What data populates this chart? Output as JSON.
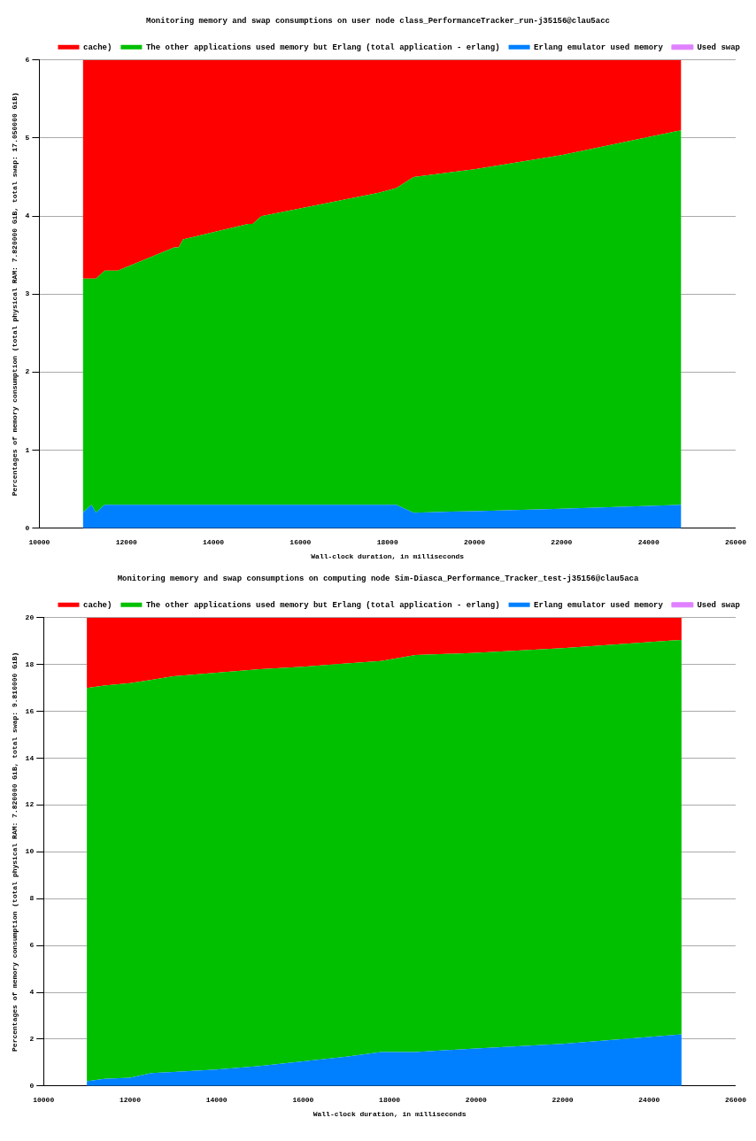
{
  "chart_data": [
    {
      "type": "area",
      "title": "Monitoring memory and swap consumptions on user node class_PerformanceTracker_run-j35156@clau5acc",
      "xlabel": "Wall-clock duration, in milliseconds",
      "ylabel": "Percentages of memory consumption (total physical RAM: 7.820000 GiB, total swap: 17.050000 GiB)",
      "stacked": true,
      "grid": "y",
      "legend": "top right",
      "marker": "none",
      "x": [
        11000,
        11200,
        11300,
        11500,
        11800,
        13100,
        13200,
        13300,
        14800,
        14900,
        15100,
        17800,
        18200,
        18600,
        20000,
        22000,
        24750
      ],
      "series": [
        {
          "name": "Erlang emulator used memory",
          "color": "#0080ff",
          "values": [
            0.2,
            0.3,
            0.2,
            0.3,
            0.3,
            0.3,
            0.3,
            0.3,
            0.3,
            0.3,
            0.3,
            0.3,
            0.3,
            0.2,
            0.22,
            0.25,
            0.3
          ]
        },
        {
          "name": "The other applications used memory but Erlang (total application - erlang)",
          "color": "#00c000",
          "values": [
            3.0,
            2.9,
            3.0,
            3.0,
            3.0,
            3.3,
            3.3,
            3.4,
            3.6,
            3.6,
            3.7,
            4.0,
            4.06,
            4.3,
            4.38,
            4.53,
            4.8
          ]
        },
        {
          "name": "cache)",
          "color": "#ff0000",
          "values": [
            2.8,
            2.8,
            2.8,
            2.7,
            2.7,
            2.4,
            2.4,
            2.3,
            2.1,
            2.1,
            2.0,
            1.7,
            1.64,
            1.5,
            1.4,
            1.22,
            0.9
          ]
        },
        {
          "name": "Used swap",
          "type": "line",
          "color": "#e080ff",
          "values": [
            null,
            null,
            null,
            null,
            null,
            null,
            null,
            null,
            null,
            null,
            null,
            null,
            null,
            null,
            null,
            null,
            null
          ]
        }
      ],
      "xlim": [
        10000,
        26000
      ],
      "xticks": [
        10000,
        12000,
        14000,
        16000,
        18000,
        20000,
        22000,
        24000,
        26000
      ],
      "ylim": [
        0,
        6
      ],
      "yticks": [
        0,
        1,
        2,
        3,
        4,
        5,
        6
      ]
    },
    {
      "type": "area",
      "title": "Monitoring memory and swap consumptions on computing node Sim-Diasca_Performance_Tracker_test-j35156@clau5aca",
      "xlabel": "Wall-clock duration, in milliseconds",
      "ylabel": "Percentages of memory consumption (total physical RAM: 7.820000 GiB, total swap: 9.810000 GiB)",
      "stacked": true,
      "grid": "y",
      "legend": "top right",
      "marker": "none",
      "x": [
        11000,
        11400,
        12000,
        12500,
        13000,
        14000,
        15000,
        16000,
        17000,
        17800,
        18600,
        20000,
        22000,
        24750
      ],
      "series": [
        {
          "name": "Erlang emulator used memory",
          "color": "#0080ff",
          "values": [
            0.2,
            0.3,
            0.35,
            0.55,
            0.6,
            0.7,
            0.85,
            1.05,
            1.25,
            1.45,
            1.45,
            1.6,
            1.8,
            2.2
          ]
        },
        {
          "name": "The other applications used memory but Erlang (total application - erlang)",
          "color": "#00c000",
          "values": [
            16.8,
            16.8,
            16.85,
            16.8,
            16.9,
            16.95,
            16.95,
            16.85,
            16.8,
            16.7,
            16.95,
            16.9,
            16.9,
            16.85
          ]
        },
        {
          "name": "cache)",
          "color": "#ff0000",
          "values": [
            3.0,
            2.9,
            2.8,
            2.65,
            2.5,
            2.35,
            2.2,
            2.1,
            1.95,
            1.85,
            1.6,
            1.5,
            1.3,
            0.95
          ]
        },
        {
          "name": "Used swap",
          "type": "line",
          "color": "#e080ff",
          "values": [
            null,
            null,
            null,
            null,
            null,
            null,
            null,
            null,
            null,
            null,
            null,
            null,
            null,
            null
          ]
        }
      ],
      "xlim": [
        10000,
        26000
      ],
      "xticks": [
        10000,
        12000,
        14000,
        16000,
        18000,
        20000,
        22000,
        24000,
        26000
      ],
      "ylim": [
        0,
        20
      ],
      "yticks": [
        0,
        2,
        4,
        6,
        8,
        10,
        12,
        14,
        16,
        18,
        20
      ]
    }
  ]
}
